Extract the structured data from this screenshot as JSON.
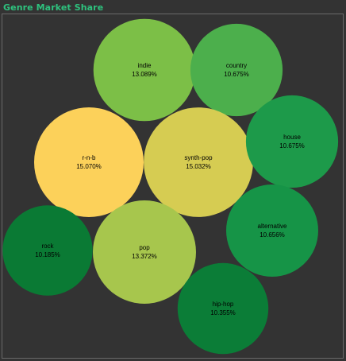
{
  "widget": {
    "title": "Genre Market Share"
  },
  "colors": {
    "background": "#333333",
    "title": "#2ec27e",
    "border": "#6a6a6a"
  },
  "chart_data": {
    "type": "bubble",
    "title": "Genre Market Share",
    "value_unit": "percent",
    "bubbles": [
      {
        "name": "indie",
        "value": 13.089,
        "label": "13.089%",
        "color": "#7cbf47"
      },
      {
        "name": "country",
        "value": 10.675,
        "label": "10.675%",
        "color": "#4caf4c"
      },
      {
        "name": "r-n-b",
        "value": 15.07,
        "label": "15.070%",
        "color": "#fcd15a"
      },
      {
        "name": "synth-pop",
        "value": 15.032,
        "label": "15.032%",
        "color": "#d6cc52"
      },
      {
        "name": "house",
        "value": 10.675,
        "label": "10.675%",
        "color": "#1d9a4a"
      },
      {
        "name": "alternative",
        "value": 10.656,
        "label": "10.656%",
        "color": "#169447"
      },
      {
        "name": "rock",
        "value": 10.185,
        "label": "10.185%",
        "color": "#0a7a34"
      },
      {
        "name": "pop",
        "value": 13.372,
        "label": "13.372%",
        "color": "#a7c64d"
      },
      {
        "name": "hip-hop",
        "value": 10.355,
        "label": "10.355%",
        "color": "#0b7d37"
      }
    ]
  }
}
